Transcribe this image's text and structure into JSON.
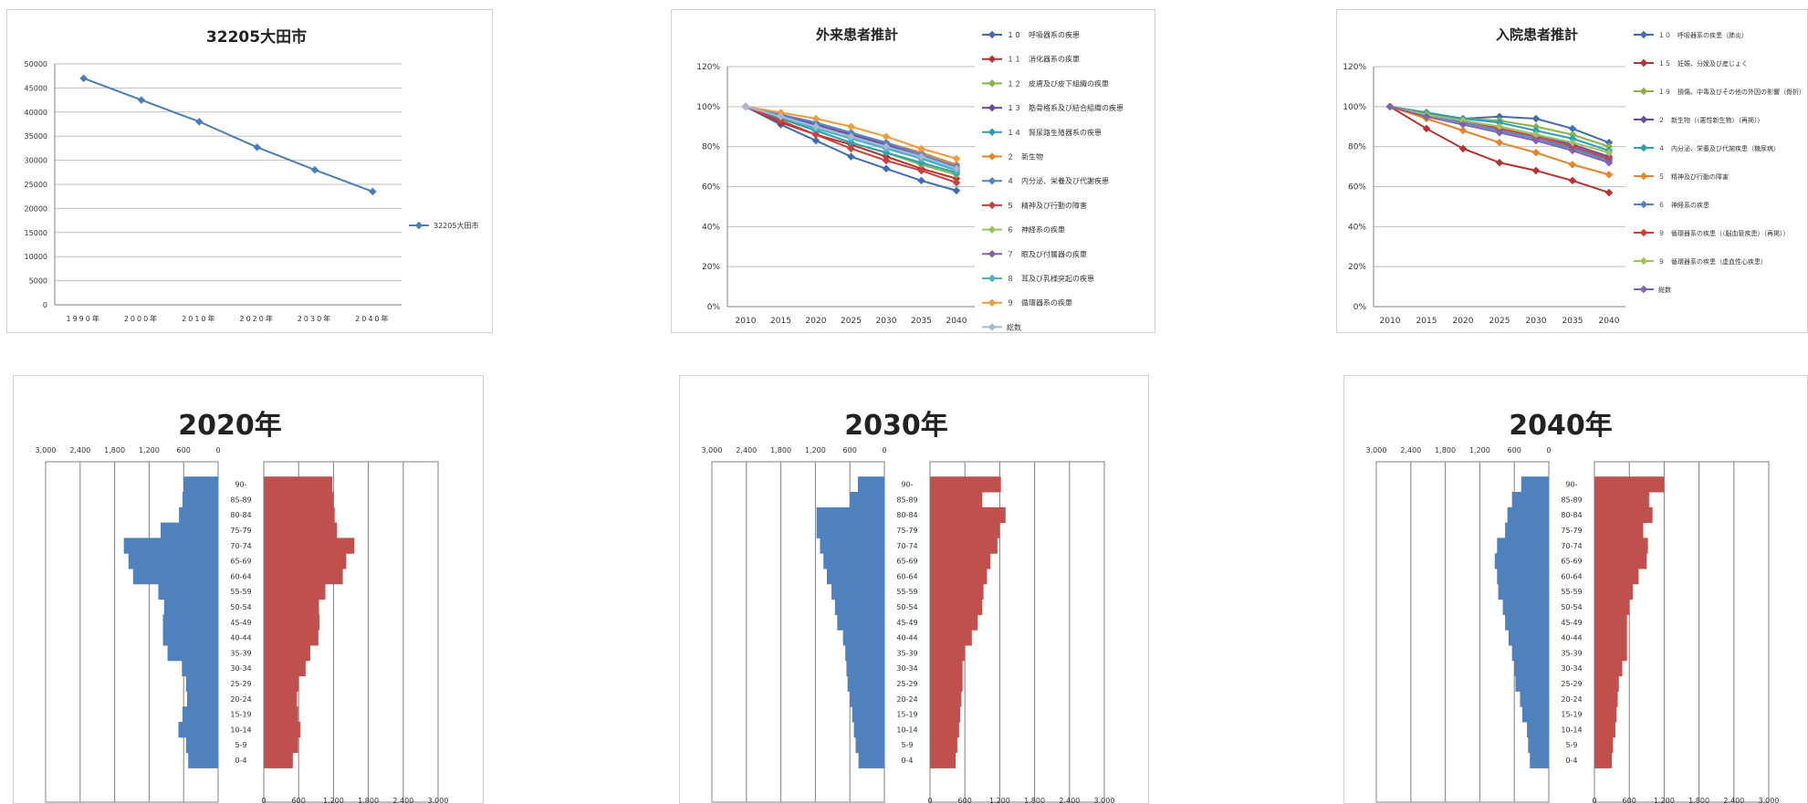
{
  "chart_data": [
    {
      "id": "pop",
      "type": "line",
      "title": "32205大田市",
      "categories": [
        "1990年",
        "2000年",
        "2010年",
        "2020年",
        "2030年",
        "2040年"
      ],
      "ylim": [
        0,
        50000
      ],
      "yticks": [
        0,
        5000,
        10000,
        15000,
        20000,
        25000,
        30000,
        35000,
        40000,
        45000,
        50000
      ],
      "series": [
        {
          "name": "32205大田市",
          "values": [
            47000,
            42500,
            38000,
            32700,
            28000,
            23500
          ]
        }
      ],
      "legend": "right",
      "colors": [
        "#4a7ebb"
      ]
    },
    {
      "id": "out",
      "type": "line",
      "title": "外来患者推計",
      "categories": [
        "2010",
        "2015",
        "2020",
        "2025",
        "2030",
        "2035",
        "2040"
      ],
      "ylim": [
        0,
        1.2
      ],
      "yticks": [
        "0%",
        "20%",
        "40%",
        "60%",
        "80%",
        "100%",
        "120%"
      ],
      "legend": "right",
      "series": [
        {
          "name": "１０　呼吸器系の疾患",
          "color": "#3f6db4",
          "values": [
            1.0,
            0.91,
            0.83,
            0.75,
            0.69,
            0.63,
            0.58
          ]
        },
        {
          "name": "１１　消化器系の疾患",
          "color": "#b5332e",
          "values": [
            1.0,
            0.92,
            0.86,
            0.81,
            0.75,
            0.69,
            0.64
          ]
        },
        {
          "name": "１２　皮膚及び皮下組織の疾患",
          "color": "#89b34a",
          "values": [
            1.0,
            0.94,
            0.88,
            0.82,
            0.77,
            0.71,
            0.66
          ]
        },
        {
          "name": "１３　筋骨格系及び結合組織の疾患",
          "color": "#6a4c9c",
          "values": [
            1.0,
            0.96,
            0.91,
            0.86,
            0.81,
            0.75,
            0.69
          ]
        },
        {
          "name": "１４　腎尿路生殖器系の疾患",
          "color": "#2aa0b6",
          "values": [
            1.0,
            0.94,
            0.88,
            0.82,
            0.77,
            0.72,
            0.67
          ]
        },
        {
          "name": "２　新生物",
          "color": "#e8832d",
          "values": [
            1.0,
            0.96,
            0.92,
            0.87,
            0.82,
            0.77,
            0.71
          ]
        },
        {
          "name": "４　内分泌、栄養及び代謝疾患",
          "color": "#4f85c8",
          "values": [
            1.0,
            0.96,
            0.92,
            0.87,
            0.82,
            0.76,
            0.7
          ]
        },
        {
          "name": "５　精神及び行動の障害",
          "color": "#c9413c",
          "values": [
            1.0,
            0.93,
            0.86,
            0.79,
            0.73,
            0.68,
            0.62
          ]
        },
        {
          "name": "６　神経系の疾患",
          "color": "#9dc35f",
          "values": [
            1.0,
            0.95,
            0.9,
            0.85,
            0.8,
            0.74,
            0.68
          ]
        },
        {
          "name": "７　眼及び付属器の疾患",
          "color": "#8063ad",
          "values": [
            1.0,
            0.95,
            0.9,
            0.85,
            0.8,
            0.74,
            0.69
          ]
        },
        {
          "name": "８　耳及び乳様突起の疾患",
          "color": "#46b4c6",
          "values": [
            1.0,
            0.95,
            0.89,
            0.84,
            0.79,
            0.74,
            0.68
          ]
        },
        {
          "name": "９　循環器系の疾患",
          "color": "#f39a3b",
          "values": [
            1.0,
            0.97,
            0.94,
            0.9,
            0.85,
            0.79,
            0.74
          ]
        },
        {
          "name": "総数",
          "color": "#a6b7d9",
          "values": [
            1.0,
            0.95,
            0.9,
            0.85,
            0.8,
            0.75,
            0.69
          ]
        }
      ]
    },
    {
      "id": "in",
      "type": "line",
      "title": "入院患者推計",
      "categories": [
        "2010",
        "2015",
        "2020",
        "2025",
        "2030",
        "2035",
        "2040"
      ],
      "ylim": [
        0,
        1.2
      ],
      "yticks": [
        "0%",
        "20%",
        "40%",
        "60%",
        "80%",
        "100%",
        "120%"
      ],
      "legend": "right",
      "series": [
        {
          "name": "１０　呼吸器系の疾患（肺炎）",
          "color": "#3f6db4",
          "values": [
            1.0,
            0.97,
            0.94,
            0.95,
            0.94,
            0.89,
            0.82
          ]
        },
        {
          "name": "１５　妊娠、分娩及び産じょく",
          "color": "#b5332e",
          "values": [
            1.0,
            0.89,
            0.79,
            0.72,
            0.68,
            0.63,
            0.57
          ]
        },
        {
          "name": "１９　損傷、中毒及びその他の外因の影響（骨折）",
          "color": "#89b34a",
          "values": [
            1.0,
            0.97,
            0.94,
            0.93,
            0.9,
            0.86,
            0.8
          ]
        },
        {
          "name": "２　新生物（（悪性新生物）（再掲））",
          "color": "#6a4c9c",
          "values": [
            1.0,
            0.96,
            0.93,
            0.9,
            0.86,
            0.81,
            0.75
          ]
        },
        {
          "name": "４　内分泌、栄養及び代謝疾患（糖尿病）",
          "color": "#2aa0b6",
          "values": [
            1.0,
            0.97,
            0.94,
            0.92,
            0.88,
            0.84,
            0.78
          ]
        },
        {
          "name": "５　精神及び行動の障害",
          "color": "#e8832d",
          "values": [
            1.0,
            0.94,
            0.88,
            0.82,
            0.77,
            0.71,
            0.66
          ]
        },
        {
          "name": "６　神経系の疾患",
          "color": "#4f85c8",
          "values": [
            1.0,
            0.96,
            0.92,
            0.88,
            0.84,
            0.79,
            0.73
          ]
        },
        {
          "name": "９　循環器系の疾患（（脳血管疾患）（再掲））",
          "color": "#c9413c",
          "values": [
            1.0,
            0.96,
            0.93,
            0.89,
            0.85,
            0.8,
            0.74
          ]
        },
        {
          "name": "９　循環器系の疾患（虚血性心疾患）",
          "color": "#9dc35f",
          "values": [
            1.0,
            0.96,
            0.93,
            0.9,
            0.86,
            0.82,
            0.77
          ]
        },
        {
          "name": "総数",
          "color": "#8063ad",
          "values": [
            1.0,
            0.95,
            0.91,
            0.87,
            0.83,
            0.78,
            0.72
          ]
        }
      ]
    },
    {
      "id": "pyr2020",
      "type": "bar",
      "title": "2020年",
      "xlim": [
        0,
        3000
      ],
      "xticks_left": [
        "3,000",
        "2,400",
        "1,800",
        "1,200",
        "600",
        "0"
      ],
      "xticks_right": [
        "0",
        "600",
        "1,200",
        "1,800",
        "2,400",
        "3,000"
      ],
      "categories": [
        "0-4",
        "5-9",
        "10-14",
        "15-19",
        "20-24",
        "25-29",
        "30-34",
        "35-39",
        "40-44",
        "45-49",
        "50-54",
        "55-59",
        "60-64",
        "65-69",
        "70-74",
        "75-79",
        "80-84",
        "85-89",
        "90-"
      ],
      "series": [
        {
          "name": "",
          "color": "#4f81bd",
          "values": [
            520,
            560,
            690,
            620,
            540,
            560,
            630,
            880,
            960,
            960,
            940,
            1040,
            1480,
            1560,
            1640,
            1000,
            680,
            620,
            600
          ]
        },
        {
          "name": "",
          "color": "#c0504d",
          "values": [
            500,
            590,
            630,
            590,
            570,
            600,
            720,
            800,
            940,
            960,
            950,
            1060,
            1360,
            1420,
            1560,
            1260,
            1220,
            1200,
            1180
          ]
        }
      ]
    },
    {
      "id": "pyr2030",
      "type": "bar",
      "title": "2030年",
      "xlim": [
        0,
        3000
      ],
      "xticks_left": [
        "3,000",
        "2,400",
        "1,800",
        "1,200",
        "600",
        "0"
      ],
      "xticks_right": [
        "0",
        "600",
        "1,200",
        "1,800",
        "2,400",
        "3,000"
      ],
      "categories": [
        "0-4",
        "5-9",
        "10-14",
        "15-19",
        "20-24",
        "25-29",
        "30-34",
        "35-39",
        "40-44",
        "45-49",
        "50-54",
        "55-59",
        "60-64",
        "65-69",
        "70-74",
        "75-79",
        "80-84",
        "85-89",
        "90-"
      ],
      "series": [
        {
          "name": "",
          "color": "#4f81bd",
          "values": [
            450,
            500,
            530,
            560,
            600,
            640,
            660,
            680,
            720,
            820,
            860,
            920,
            1000,
            1060,
            1120,
            1180,
            1180,
            600,
            460
          ]
        },
        {
          "name": "",
          "color": "#c0504d",
          "values": [
            440,
            470,
            500,
            520,
            540,
            560,
            560,
            600,
            720,
            820,
            900,
            920,
            980,
            1040,
            1160,
            1200,
            1300,
            900,
            1220
          ]
        }
      ]
    },
    {
      "id": "pyr2040",
      "type": "bar",
      "title": "2040年",
      "xlim": [
        0,
        3000
      ],
      "xticks_left": [
        "3,000",
        "2,400",
        "1,800",
        "1,200",
        "600",
        "0"
      ],
      "xticks_right": [
        "0",
        "600",
        "1,200",
        "1,800",
        "2,400",
        "3,000"
      ],
      "categories": [
        "0-4",
        "5-9",
        "10-14",
        "15-19",
        "20-24",
        "25-29",
        "30-34",
        "35-39",
        "40-44",
        "45-49",
        "50-54",
        "55-59",
        "60-64",
        "65-69",
        "70-74",
        "75-79",
        "80-84",
        "85-89",
        "90-"
      ],
      "series": [
        {
          "name": "",
          "color": "#4f81bd",
          "values": [
            330,
            360,
            380,
            460,
            500,
            580,
            600,
            640,
            700,
            760,
            800,
            880,
            900,
            940,
            900,
            760,
            720,
            640,
            480
          ]
        },
        {
          "name": "",
          "color": "#c0504d",
          "values": [
            300,
            320,
            360,
            380,
            400,
            420,
            480,
            560,
            560,
            560,
            600,
            660,
            760,
            900,
            920,
            840,
            1000,
            940,
            1200
          ]
        }
      ]
    }
  ]
}
